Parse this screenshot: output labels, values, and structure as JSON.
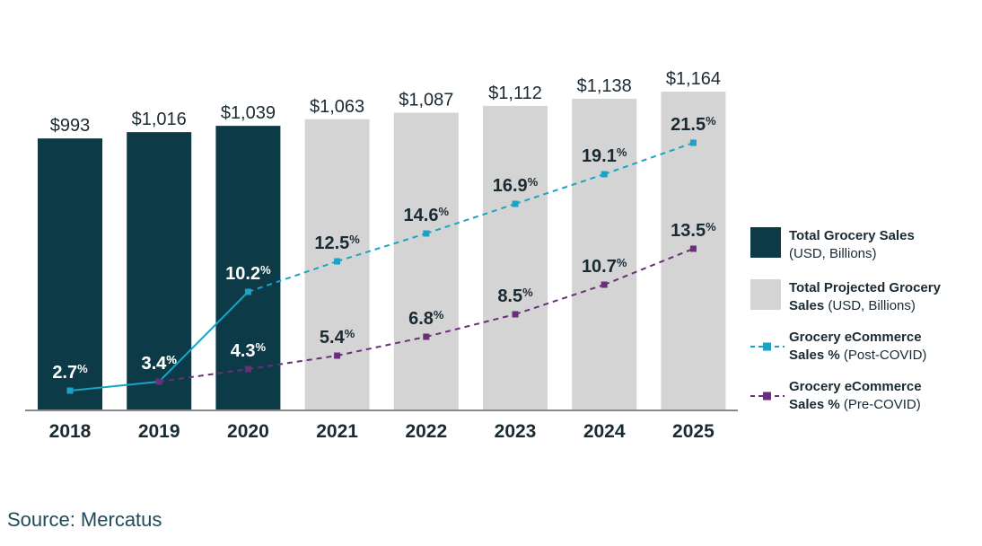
{
  "chart_data": {
    "type": "bar",
    "categories": [
      "2018",
      "2019",
      "2020",
      "2021",
      "2022",
      "2023",
      "2024",
      "2025"
    ],
    "bar_value_labels": [
      "$993",
      "$1,016",
      "$1,039",
      "$1,063",
      "$1,087",
      "$1,112",
      "$1,138",
      "$1,164"
    ],
    "bar_values": [
      993,
      1016,
      1039,
      1063,
      1087,
      1112,
      1138,
      1164
    ],
    "bar_kind": [
      "actual",
      "actual",
      "actual",
      "projected",
      "projected",
      "projected",
      "projected",
      "projected"
    ],
    "series": [
      {
        "name": "Grocery eCommerce Sales % (Post-COVID)",
        "x": [
          "2018",
          "2019",
          "2020",
          "2021",
          "2022",
          "2023",
          "2024",
          "2025"
        ],
        "values": [
          2.7,
          3.4,
          10.2,
          12.5,
          14.6,
          16.9,
          19.1,
          21.5
        ],
        "labels": [
          "2.7",
          "3.4",
          "10.2",
          "12.5",
          "14.6",
          "16.9",
          "19.1",
          "21.5"
        ],
        "solid_until_index": 2
      },
      {
        "name": "Grocery eCommerce Sales % (Pre-COVID)",
        "x": [
          "2019",
          "2020",
          "2021",
          "2022",
          "2023",
          "2024",
          "2025"
        ],
        "values": [
          3.4,
          4.3,
          5.4,
          6.8,
          8.5,
          10.7,
          13.5
        ],
        "labels": [
          "3.4",
          "4.3",
          "5.4",
          "6.8",
          "8.5",
          "10.7",
          "13.5"
        ]
      }
    ],
    "percent_unit": "%",
    "bar_ylim": [
      0,
      1200
    ],
    "pct_ylim": [
      0,
      26
    ],
    "legend_position": "right",
    "colors": {
      "actual_bar": "#0d3a47",
      "projected_bar": "#d4d4d4",
      "post_covid": "#1aa3c4",
      "pre_covid": "#6b2f7a",
      "axis": "#8a8a8a",
      "text_dark": "#1a2a33"
    }
  },
  "legend": {
    "actual": {
      "title": "Total Grocery Sales",
      "sub": "(USD, Billions)"
    },
    "projected": {
      "title_line1": "Total Projected Grocery",
      "title_line2": "Sales",
      "sub": "(USD, Billions)"
    },
    "post": {
      "title_line1": "Grocery eCommerce",
      "title_line2": "Sales %",
      "sub": "(Post-COVID)"
    },
    "pre": {
      "title_line1": "Grocery eCommerce",
      "title_line2": "Sales %",
      "sub": "(Pre-COVID)"
    }
  },
  "source": "Source: Mercatus"
}
